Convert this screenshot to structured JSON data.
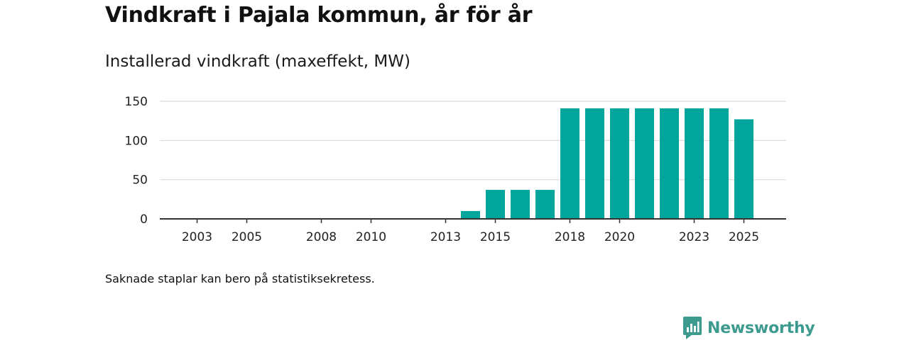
{
  "header": {
    "title": "Vindkraft i Pajala kommun, år för år",
    "subtitle": "Installerad vindkraft (maxeffekt, MW)"
  },
  "footer": {
    "note": "Saknade staplar kan bero på statistiksekretess.",
    "brand": "Newsworthy"
  },
  "colors": {
    "bar": "#00a69c",
    "grid": "#d9d9d9",
    "axis": "#333333",
    "brand": "#3d9a8e"
  },
  "chart_data": {
    "type": "bar",
    "title": "Installerad vindkraft (maxeffekt, MW)",
    "xlabel": "",
    "ylabel": "",
    "x_range": [
      2002,
      2026
    ],
    "ylim": [
      0,
      150
    ],
    "y_ticks": [
      0,
      50,
      100,
      150
    ],
    "x_tick_labels": [
      "2003",
      "2005",
      "2008",
      "2010",
      "2013",
      "2015",
      "2018",
      "2020",
      "2023",
      "2025"
    ],
    "grid": true,
    "categories": [
      "2014",
      "2015",
      "2016",
      "2017",
      "2018",
      "2019",
      "2020",
      "2021",
      "2022",
      "2023",
      "2024",
      "2025"
    ],
    "values": [
      10,
      37,
      37,
      37,
      141,
      141,
      141,
      141,
      141,
      141,
      141,
      127
    ]
  }
}
